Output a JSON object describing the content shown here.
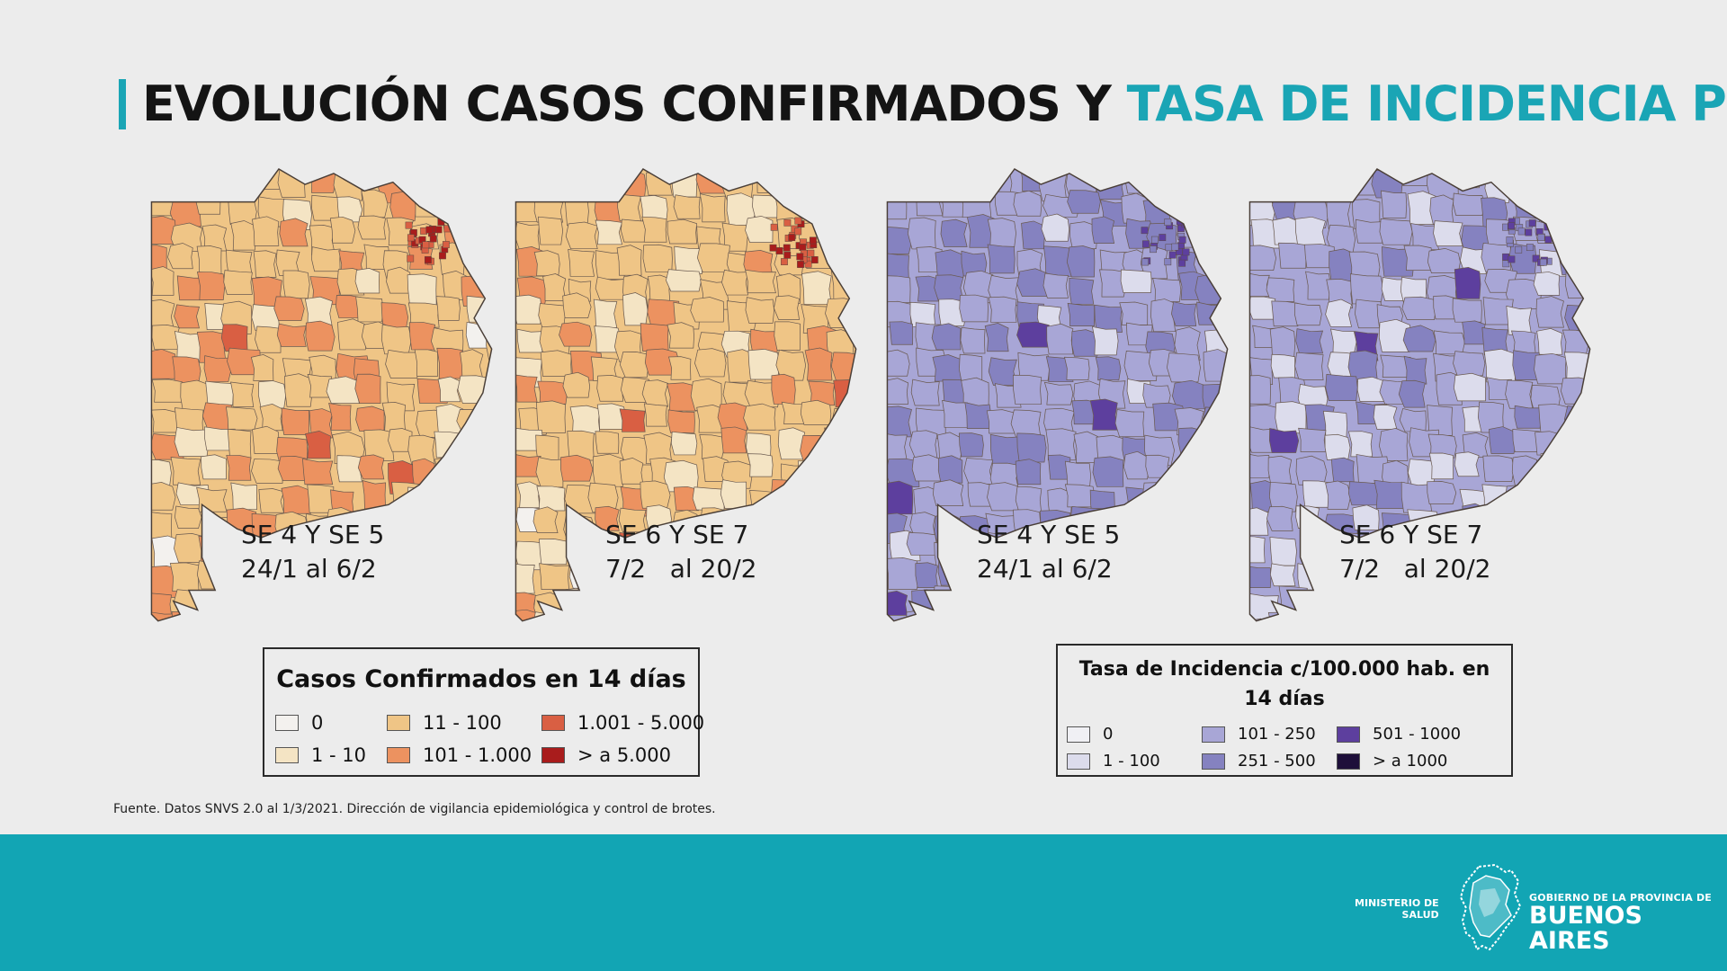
{
  "title": {
    "part1": "EVOLUCIÓN CASOS CONFIRMADOS Y",
    "part2": "TASA DE INCIDENCIA PBA"
  },
  "maps": [
    {
      "line1": "SE 4 Y SE 5",
      "line2": "24/1 al 6/2",
      "palette": "cases"
    },
    {
      "line1": "SE 6 Y SE 7",
      "line2": "7/2   al 20/2",
      "palette": "cases"
    },
    {
      "line1": "SE 4 Y SE 5",
      "line2": "24/1 al 6/2",
      "palette": "rate"
    },
    {
      "line1": "SE 6 Y SE 7",
      "line2": "7/2   al 20/2",
      "palette": "rate"
    }
  ],
  "legend_cases": {
    "title": "Casos Confirmados en 14 días",
    "items": [
      {
        "label": "0",
        "color": "#f3f1ee"
      },
      {
        "label": "1 - 10",
        "color": "#f4e4c4"
      },
      {
        "label": "11 - 100",
        "color": "#efc586"
      },
      {
        "label": "101 - 1.000",
        "color": "#ec9260"
      },
      {
        "label": "1.001 - 5.000",
        "color": "#d95f43"
      },
      {
        "label": "> a 5.000",
        "color": "#a91c1c"
      }
    ]
  },
  "legend_rate": {
    "title": "Tasa de Incidencia c/100.000 hab. en 14 días",
    "items": [
      {
        "label": "0",
        "color": "#f0f0f4"
      },
      {
        "label": "1 - 100",
        "color": "#dcdcec"
      },
      {
        "label": "101 - 250",
        "color": "#a8a6d6"
      },
      {
        "label": "251 - 500",
        "color": "#8582c0"
      },
      {
        "label": "501 - 1000",
        "color": "#5d3f9e"
      },
      {
        "label": "> a 1000",
        "color": "#1e0f3a"
      }
    ]
  },
  "source": "Fuente. Datos SNVS 2.0 al 1/3/2021. Dirección de vigilancia epidemiológica y control de brotes.",
  "logos": {
    "ministerio_line1": "MINISTERIO DE",
    "ministerio_line2": "SALUD",
    "gobierno_line1": "GOBIERNO DE LA PROVINCIA DE",
    "gobierno_line2": "BUENOS AIRES"
  }
}
